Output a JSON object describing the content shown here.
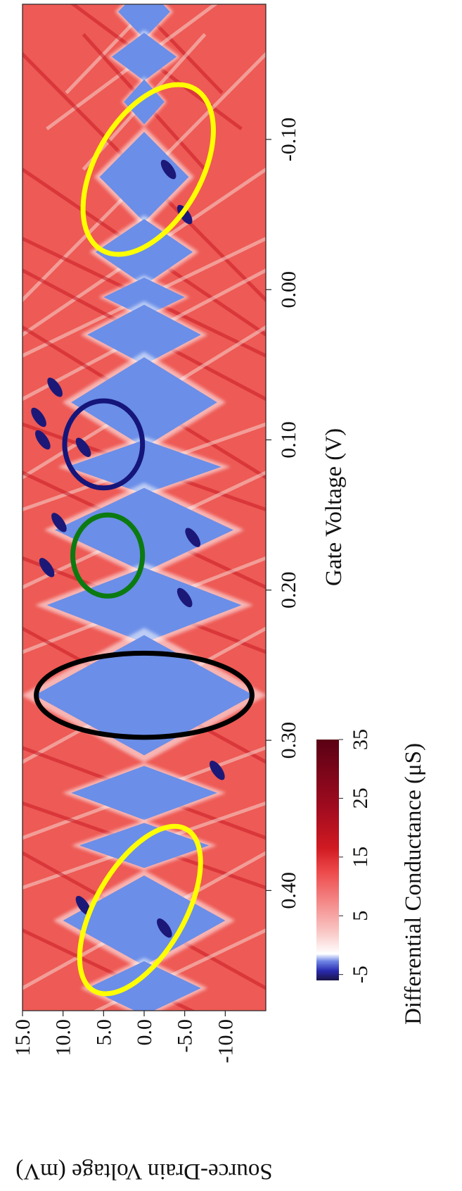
{
  "chart_data": {
    "type": "heatmap",
    "xlabel": "Gate Voltage (V)",
    "ylabel": "Source-Drain Voltage (mV)",
    "x_ticks": [
      "-0.10",
      "0.00",
      "0.10",
      "0.20",
      "0.30",
      "0.40"
    ],
    "x_tick_values": [
      -0.1,
      0.0,
      0.1,
      0.2,
      0.3,
      0.4
    ],
    "xlim": [
      -0.19,
      0.48
    ],
    "y_ticks": [
      "15.0",
      "10.0",
      "5.0",
      "0.0",
      "-5.0",
      "-10.0"
    ],
    "y_tick_values": [
      15.0,
      10.0,
      5.0,
      0.0,
      -5.0,
      -10.0
    ],
    "ylim": [
      -15.0,
      15.0
    ],
    "colorbar": {
      "label": "Differential Conductance (μS)",
      "ticks": [
        "-5",
        "5",
        "15",
        "25",
        "35"
      ],
      "tick_values": [
        -5,
        5,
        15,
        25,
        35
      ],
      "range": [
        -6,
        35
      ],
      "colors": [
        "#1a1446",
        "#2a2bb0",
        "#6f86e6",
        "#ffffff",
        "#f9c8c6",
        "#ee4a4b",
        "#d01a22",
        "#a00b1f",
        "#5a0014"
      ]
    },
    "background_color": "#ee5a55",
    "diamond_color": "#6b8ee8",
    "blockade_diamonds": [
      {
        "vg_center": -0.185,
        "half_width": 0.018,
        "vsd_half": 3.2
      },
      {
        "vg_center": -0.155,
        "half_width": 0.016,
        "vsd_half": 4.0
      },
      {
        "vg_center": -0.125,
        "half_width": 0.015,
        "vsd_half": 2.5
      },
      {
        "vg_center": -0.075,
        "half_width": 0.03,
        "vsd_half": 5.5
      },
      {
        "vg_center": -0.025,
        "half_width": 0.022,
        "vsd_half": 6.0
      },
      {
        "vg_center": 0.005,
        "half_width": 0.013,
        "vsd_half": 5.0
      },
      {
        "vg_center": 0.03,
        "half_width": 0.02,
        "vsd_half": 7.0
      },
      {
        "vg_center": 0.075,
        "half_width": 0.03,
        "vsd_half": 9.0
      },
      {
        "vg_center": 0.118,
        "half_width": 0.018,
        "vsd_half": 9.5
      },
      {
        "vg_center": 0.16,
        "half_width": 0.028,
        "vsd_half": 11.0
      },
      {
        "vg_center": 0.21,
        "half_width": 0.025,
        "vsd_half": 12.0
      },
      {
        "vg_center": 0.27,
        "half_width": 0.04,
        "vsd_half": 13.5
      },
      {
        "vg_center": 0.335,
        "half_width": 0.018,
        "vsd_half": 9.0
      },
      {
        "vg_center": 0.37,
        "half_width": 0.015,
        "vsd_half": 8.0
      },
      {
        "vg_center": 0.42,
        "half_width": 0.03,
        "vsd_half": 10.0
      },
      {
        "vg_center": 0.465,
        "half_width": 0.018,
        "vsd_half": 7.0
      }
    ],
    "negative_spots": [
      {
        "vg": 0.085,
        "vsd": 13.0
      },
      {
        "vg": 0.1,
        "vsd": 12.5
      },
      {
        "vg": 0.065,
        "vsd": 11.0
      },
      {
        "vg": 0.105,
        "vsd": 7.5
      },
      {
        "vg": 0.155,
        "vsd": 10.5
      },
      {
        "vg": 0.205,
        "vsd": -5.0
      },
      {
        "vg": 0.165,
        "vsd": -6.0
      },
      {
        "vg": 0.32,
        "vsd": -9.0
      },
      {
        "vg": -0.08,
        "vsd": -3.0
      },
      {
        "vg": -0.05,
        "vsd": -5.0
      },
      {
        "vg": 0.41,
        "vsd": 7.5
      },
      {
        "vg": 0.425,
        "vsd": -2.5
      },
      {
        "vg": 0.185,
        "vsd": 12.0
      }
    ],
    "annotations": [
      {
        "shape": "ellipse",
        "color": "#ffff00",
        "vg_center": -0.08,
        "vsd_center": -0.5,
        "vg_half": 0.062,
        "vsd_half": 6.5,
        "rotation_deg": 30
      },
      {
        "shape": "circle",
        "color": "#15157a",
        "vg_center": 0.103,
        "vsd_center": 5.0,
        "vg_half": 0.029,
        "vsd_half": 4.8,
        "rotation_deg": 0
      },
      {
        "shape": "circle",
        "color": "#0b7a10",
        "vg_center": 0.177,
        "vsd_center": 4.5,
        "vg_half": 0.027,
        "vsd_half": 4.3,
        "rotation_deg": 0
      },
      {
        "shape": "ellipse",
        "color": "#000000",
        "vg_center": 0.27,
        "vsd_center": 0.0,
        "vg_half": 0.028,
        "vsd_half": 13.3,
        "rotation_deg": 0
      },
      {
        "shape": "ellipse",
        "color": "#ffff00",
        "vg_center": 0.413,
        "vsd_center": 0.5,
        "vg_half": 0.062,
        "vsd_half": 5.5,
        "rotation_deg": 30
      }
    ]
  }
}
